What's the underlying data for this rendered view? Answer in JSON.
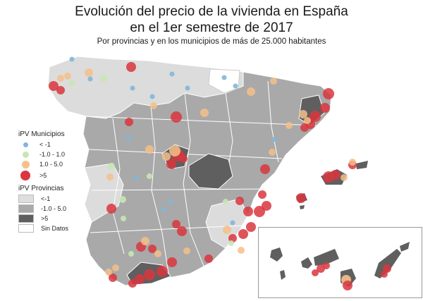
{
  "title_line1": "Evolución del precio de la vivienda en España",
  "title_line2": "en el 1er semestre de 2017",
  "subtitle": "Por provincias y en los municipios de más de 25.000 habitantes",
  "legend_municipios": {
    "title": "iPV Municipios",
    "items": [
      {
        "label": "< -1",
        "color": "#7fb7d9"
      },
      {
        "label": "-1.0 - 1.0",
        "color": "#c8e6b4"
      },
      {
        "label": "1.0 - 5.0",
        "color": "#f5c08a"
      },
      {
        "label": ">5",
        "color": "#d9363e"
      }
    ]
  },
  "legend_provincias": {
    "title": "iPV Provincias",
    "items": [
      {
        "label": "<-1",
        "color": "#dedede"
      },
      {
        "label": "-1.0 - 5.0",
        "color": "#a9a9a9"
      },
      {
        "label": ">5",
        "color": "#5f5f5f"
      },
      {
        "label": "Sin Datos",
        "color": "#ffffff"
      }
    ]
  }
}
